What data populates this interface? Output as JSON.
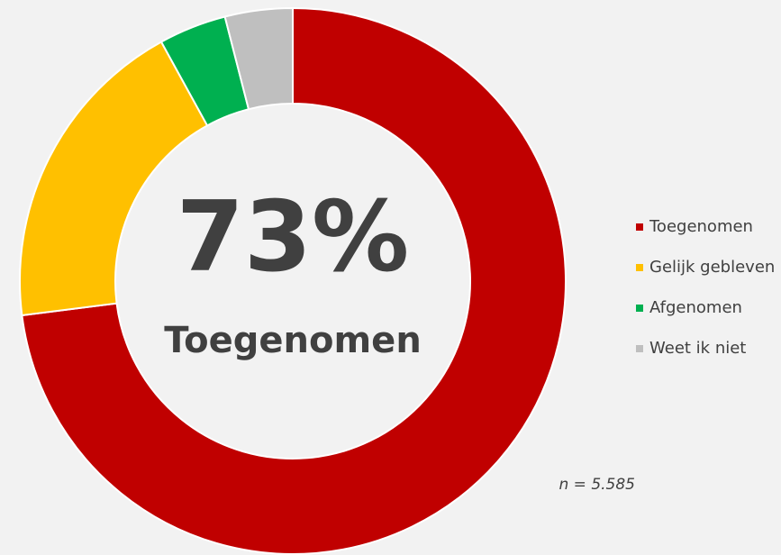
{
  "chart_data": {
    "type": "donut",
    "categories": [
      "Toegenomen",
      "Gelijk gebleven",
      "Afgenomen",
      "Weet ik niet"
    ],
    "values": [
      73,
      19,
      4,
      4
    ],
    "value_labels": [
      "73%",
      "19%",
      "4%",
      "4%"
    ],
    "colors": [
      "#c00000",
      "#ffc000",
      "#00b050",
      "#bfbfbf"
    ],
    "legend": "right",
    "annotation": "n = 5.585"
  }
}
